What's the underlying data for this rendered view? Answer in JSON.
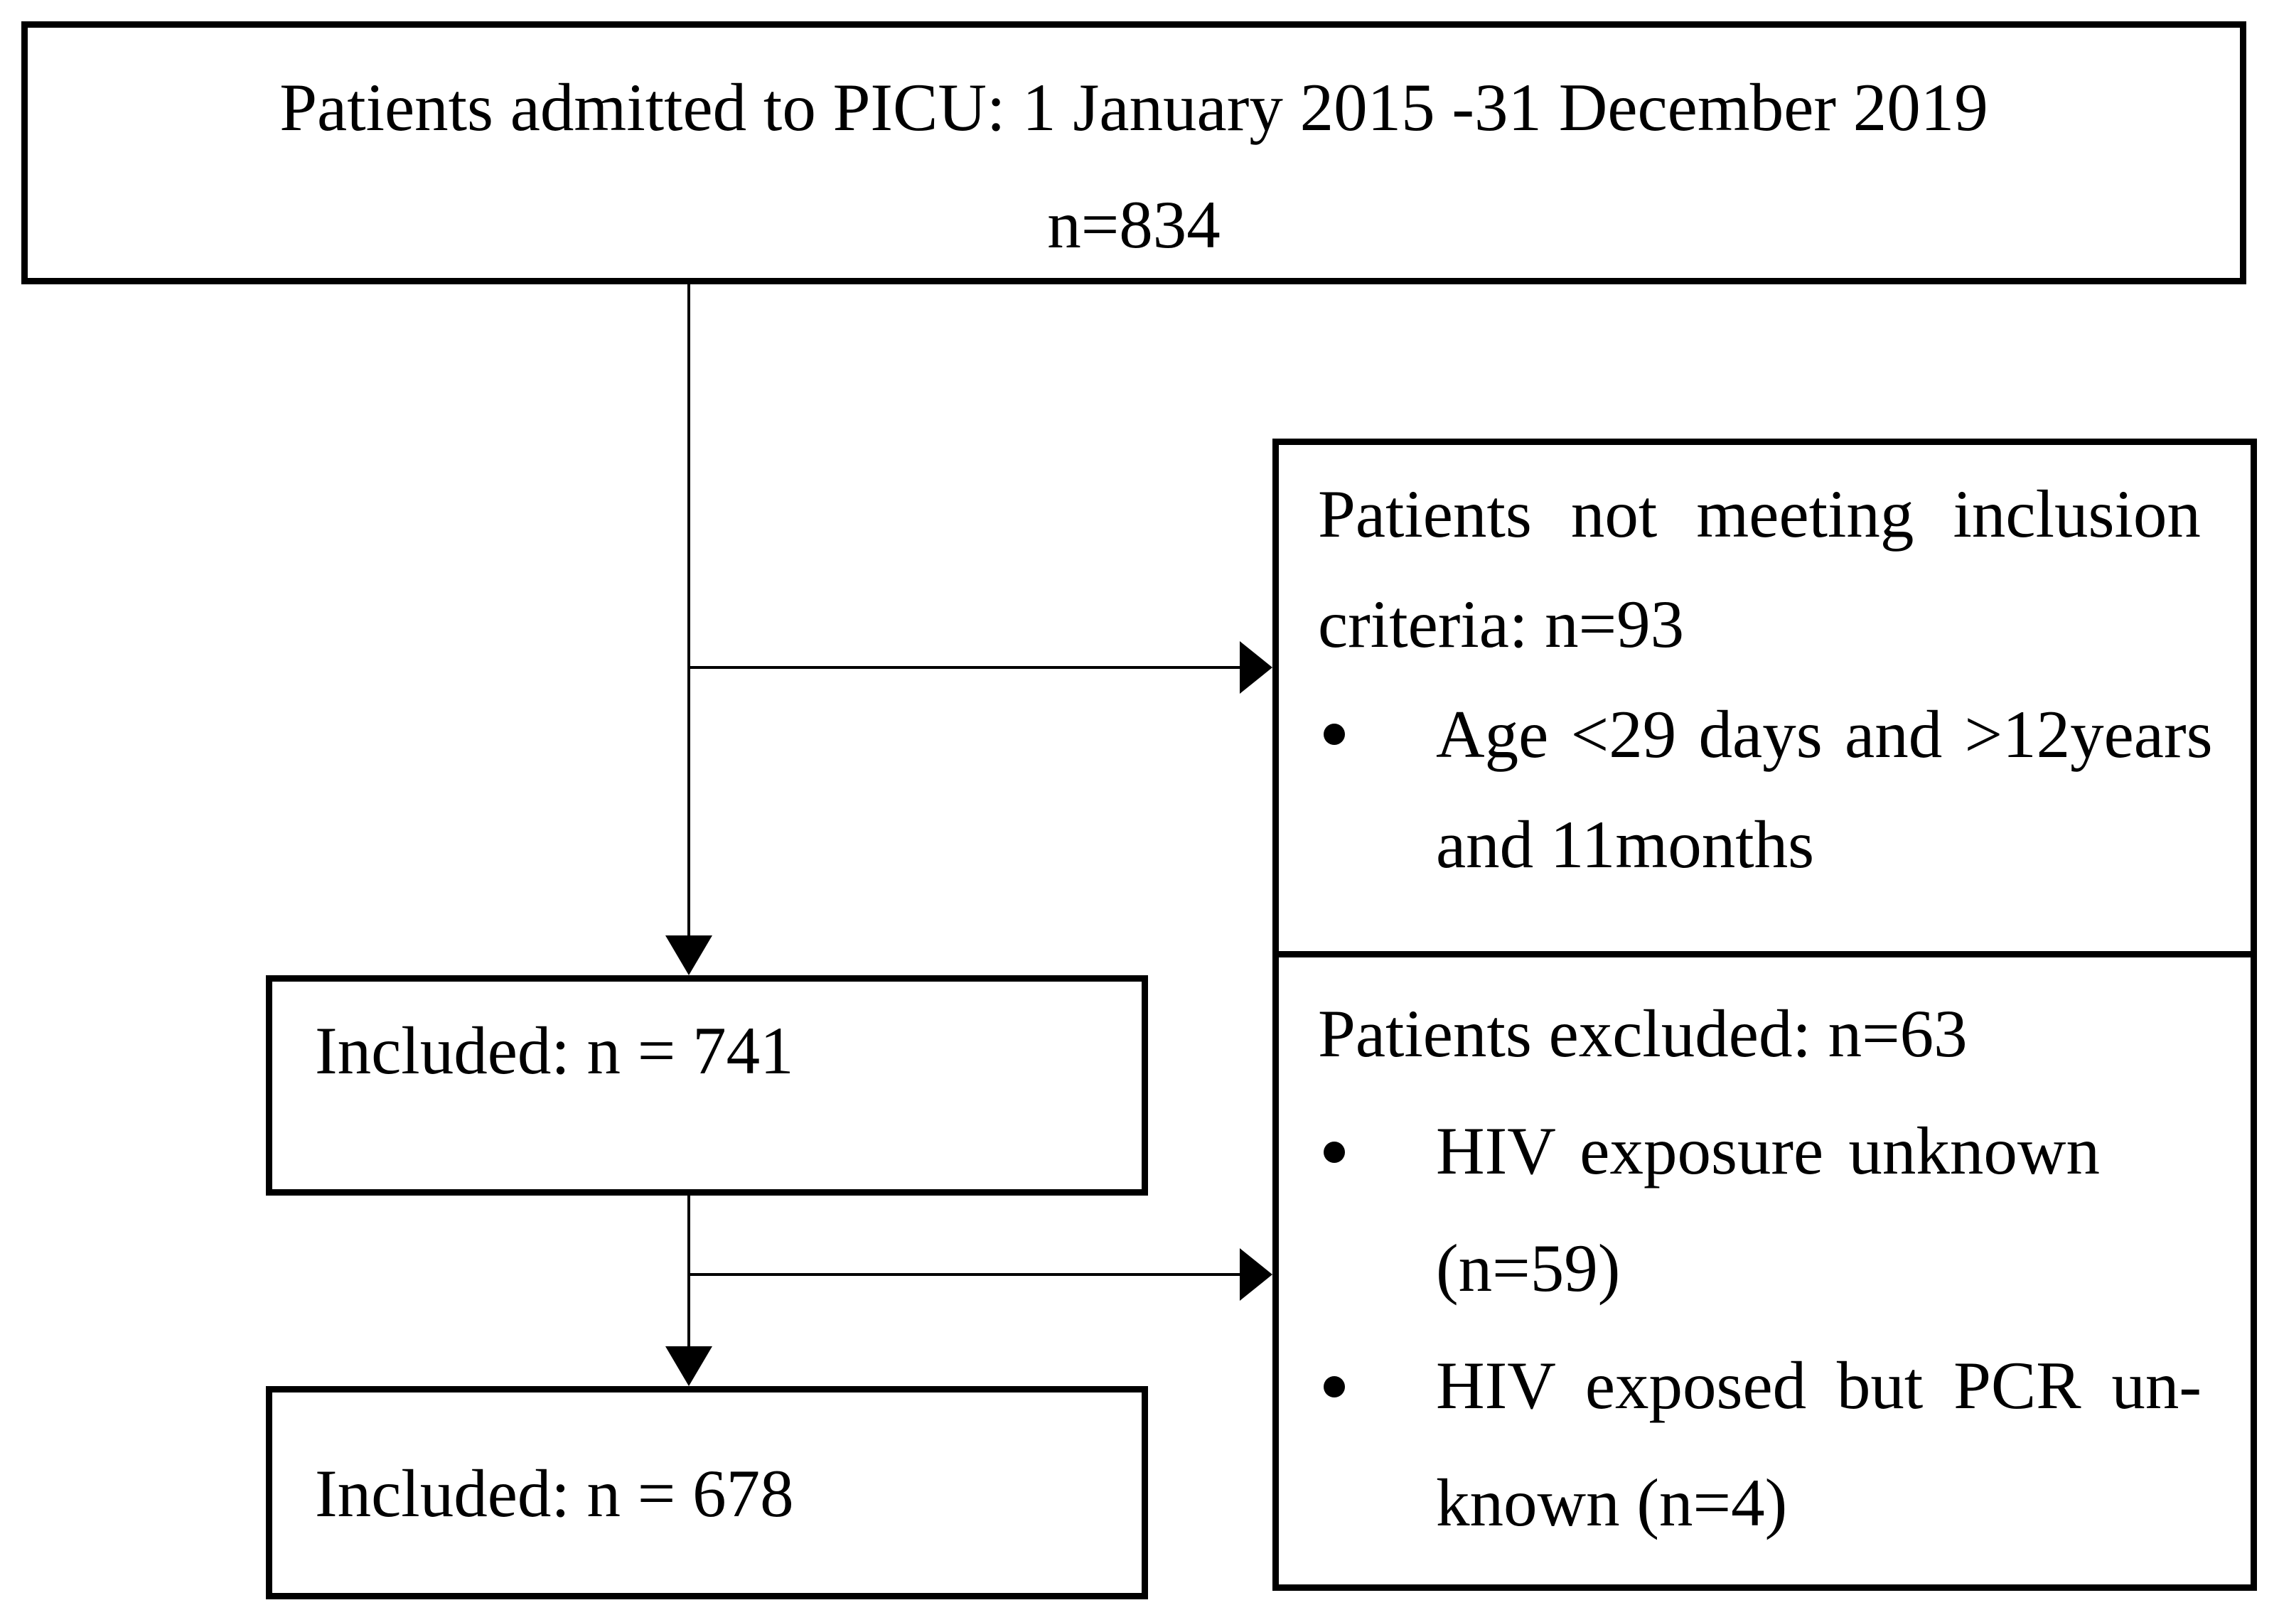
{
  "figure": {
    "type": "patient-flow-diagram",
    "colors": {
      "background": "#ffffff",
      "line": "#000000",
      "text": "#000000"
    },
    "boxes": {
      "admitted": {
        "line1": "Patients admitted to PICU: 1 January 2015 -31 December 2019",
        "line2": "n=834"
      },
      "not_meeting_criteria": {
        "line1": "Patients not meeting inclusion",
        "line2": "criteria: n=93",
        "bullets": [
          {
            "line1": "Age <29 days and >12years",
            "line2": "and 11months"
          }
        ]
      },
      "excluded": {
        "line1": "Patients excluded: n=63",
        "bullets": [
          {
            "line1": "HIV exposure unknown",
            "line2": "(n=59)"
          },
          {
            "line1": "HIV exposed but PCR un-",
            "line2": "known (n=4)"
          }
        ]
      },
      "included_741": {
        "label": "Included: n = 741"
      },
      "included_678": {
        "label": "Included: n = 678"
      }
    }
  }
}
